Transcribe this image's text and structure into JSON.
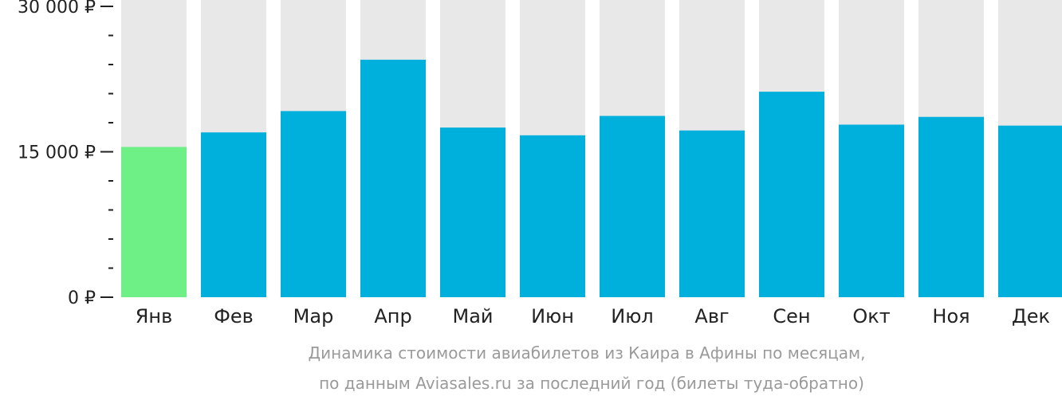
{
  "chart_data": {
    "type": "bar",
    "categories": [
      "Янв",
      "Фев",
      "Мар",
      "Апр",
      "Май",
      "Июн",
      "Июл",
      "Авг",
      "Сен",
      "Окт",
      "Ноя",
      "Дек"
    ],
    "values": [
      15500,
      17000,
      19200,
      24500,
      17500,
      16700,
      18700,
      17200,
      21200,
      17800,
      18600,
      17700
    ],
    "ylim": [
      0,
      30000
    ],
    "ytick_labels": [
      "30 000 ₽",
      "15 000 ₽",
      "0 ₽"
    ],
    "ytick_values": [
      30000,
      15000,
      0
    ],
    "minor_ticks_between_major": 4,
    "grid": false,
    "title": "",
    "xlabel": "",
    "ylabel": "",
    "caption": [
      "Динамика стоимости авиабилетов из Каира в Афины по месяцам,",
      "по данным Aviasales.ru за последний год (билеты туда-обратно)"
    ],
    "colors": {
      "background_bar": "#e8e8e8",
      "bar": "#00b0dc",
      "highlight_bar": "#6ef087",
      "highlight_index": 0,
      "axis": "#222222",
      "caption": "#9a9a9a"
    }
  }
}
